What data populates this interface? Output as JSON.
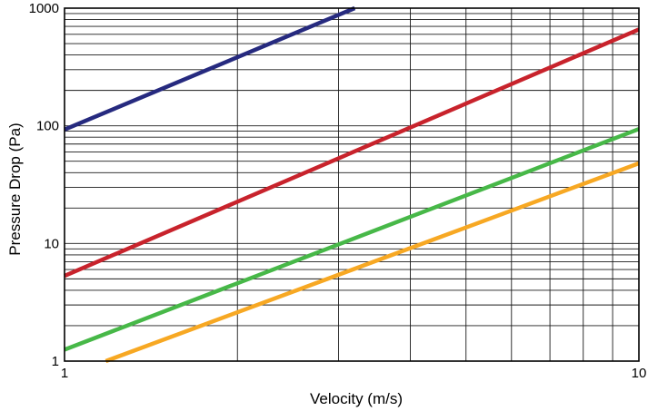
{
  "chart_data": {
    "type": "line",
    "title": "",
    "xlabel": "Velocity (m/s)",
    "ylabel": "Pressure Drop (Pa)",
    "x_scale": "log",
    "y_scale": "log",
    "xlim": [
      1,
      10
    ],
    "ylim": [
      1,
      1000
    ],
    "grid": true,
    "legend": "none",
    "x_ticks": [
      {
        "value": 1,
        "label": "1"
      },
      {
        "value": 10,
        "label": "10"
      }
    ],
    "y_ticks": [
      {
        "value": 1,
        "label": "1"
      },
      {
        "value": 10,
        "label": "10"
      },
      {
        "value": 100,
        "label": "100"
      },
      {
        "value": 1000,
        "label": "1000"
      }
    ],
    "series": [
      {
        "color": "#262a7f",
        "points": [
          {
            "x": 1,
            "y": 93
          },
          {
            "x": 3.2,
            "y": 1000
          }
        ]
      },
      {
        "color": "#c8232c",
        "points": [
          {
            "x": 1,
            "y": 5.3
          },
          {
            "x": 10,
            "y": 660
          }
        ]
      },
      {
        "color": "#47b848",
        "points": [
          {
            "x": 1,
            "y": 1.25
          },
          {
            "x": 10,
            "y": 94
          }
        ]
      },
      {
        "color": "#f7a823",
        "points": [
          {
            "x": 1.18,
            "y": 1
          },
          {
            "x": 10,
            "y": 48
          }
        ]
      }
    ]
  }
}
